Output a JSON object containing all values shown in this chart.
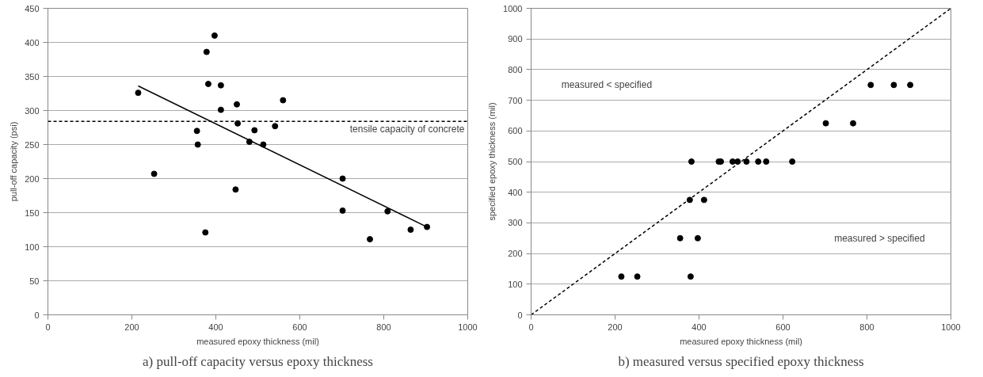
{
  "chart_data": [
    {
      "type": "scatter",
      "xlabel": "measured epoxy thickness (mil)",
      "ylabel": "pull-off capacity (psi)",
      "xlim": [
        0,
        1000
      ],
      "xticks": [
        0,
        200,
        400,
        600,
        800,
        1000
      ],
      "ylim": [
        0,
        450
      ],
      "yticks": [
        0,
        50,
        100,
        150,
        200,
        250,
        300,
        350,
        400,
        450
      ],
      "grid": "y",
      "series": [
        {
          "color": "#000000",
          "marker": "circle",
          "x": [
            215,
            253,
            355,
            357,
            375,
            378,
            382,
            397,
            412,
            412,
            447,
            450,
            452,
            480,
            492,
            513,
            541,
            560,
            702,
            702,
            767,
            809,
            864,
            903
          ],
          "values": [
            326,
            207,
            270,
            250,
            121,
            386,
            339,
            410,
            337,
            301,
            184,
            309,
            281,
            254,
            271,
            250,
            277,
            315,
            200,
            153,
            111,
            152,
            125,
            129
          ]
        },
        {
          "type": "line",
          "color": "#000000",
          "line_style": "solid",
          "x": [
            215,
            903
          ],
          "values": [
            336,
            129
          ]
        }
      ],
      "ref_lines": [
        {
          "axis": "y",
          "value": 284,
          "label": "tensile capacity of concrete",
          "color": "#000000",
          "line_style": "dashed"
        }
      ],
      "annotations": [
        "a) pull-off capacity versus epoxy thickness"
      ]
    },
    {
      "type": "scatter",
      "xlabel": "measured epoxy thickness (mil)",
      "ylabel": "specified epoxy thickness (mil)",
      "xlim": [
        0,
        1000
      ],
      "xticks": [
        0,
        200,
        400,
        600,
        800,
        1000
      ],
      "ylim": [
        0,
        1000
      ],
      "yticks": [
        0,
        100,
        200,
        300,
        400,
        500,
        600,
        700,
        800,
        900,
        1000
      ],
      "grid": "y",
      "series": [
        {
          "color": "#000000",
          "marker": "circle",
          "x": [
            215,
            253,
            355,
            397,
            378,
            412,
            380,
            382,
            447,
            452,
            480,
            492,
            513,
            541,
            560,
            622,
            702,
            767,
            809,
            864,
            903
          ],
          "values": [
            125,
            125,
            250,
            250,
            375,
            375,
            125,
            500,
            500,
            500,
            500,
            500,
            500,
            500,
            500,
            500,
            625,
            625,
            750,
            750,
            750
          ]
        },
        {
          "type": "line",
          "color": "#000000",
          "line_style": "dashed",
          "x": [
            0,
            1000
          ],
          "values": [
            0,
            1000
          ]
        }
      ],
      "annotations": [
        "measured < specified",
        "measured > specified",
        "b) measured versus specified epoxy thickness"
      ]
    }
  ]
}
